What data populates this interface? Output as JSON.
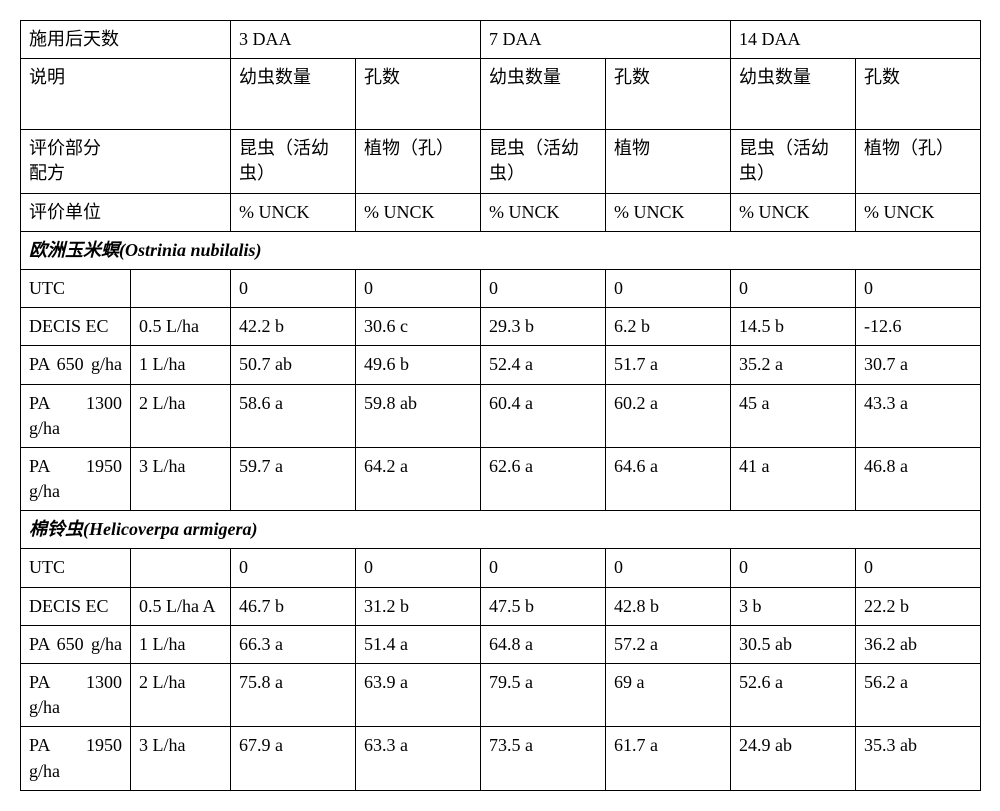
{
  "header": {
    "days_after_app": "施用后天数",
    "daa3": "3 DAA",
    "daa7": "7 DAA",
    "daa14": "14 DAA",
    "desc": "说明",
    "larva_count": "幼虫数量",
    "hole_count": "孔数",
    "eval_part": "评价部分",
    "formulation": "配方",
    "insect_live3": "昆虫（活幼虫）",
    "plant_hole3": "植物（孔）",
    "insect_live7": "昆虫（活幼虫）",
    "plant7": "植物",
    "insect_live14": "昆虫（活幼虫）",
    "plant_hole14": "植物（孔）",
    "eval_unit": "评价单位",
    "pct_unck": "% UNCK"
  },
  "species1": {
    "title_cn": "欧洲玉米螟",
    "title_latin": "(Ostrinia nubilalis)",
    "rows": [
      {
        "name": "UTC",
        "rate": "",
        "v": [
          "0",
          "0",
          "0",
          "0",
          "0",
          "0"
        ]
      },
      {
        "name": "DECIS EC",
        "rate": "0.5 L/ha",
        "v": [
          "42.2 b",
          "30.6 c",
          "29.3 b",
          "6.2 b",
          "14.5 b",
          "-12.6"
        ]
      },
      {
        "name": "PA 650 g/ha",
        "rate": "1 L/ha",
        "v": [
          "50.7 ab",
          "49.6 b",
          "52.4 a",
          "51.7 a",
          "35.2 a",
          "30.7 a"
        ]
      },
      {
        "name": "PA 1300 g/ha",
        "rate": "2 L/ha",
        "v": [
          "58.6 a",
          "59.8 ab",
          "60.4 a",
          "60.2 a",
          "45 a",
          "43.3 a"
        ]
      },
      {
        "name": "PA 1950 g/ha",
        "rate": "3 L/ha",
        "v": [
          "59.7 a",
          "64.2 a",
          "62.6 a",
          "64.6 a",
          "41 a",
          "46.8 a"
        ]
      }
    ]
  },
  "species2": {
    "title_cn": "棉铃虫",
    "title_latin": "(Helicoverpa armigera)",
    "rows": [
      {
        "name": "UTC",
        "rate": "",
        "v": [
          "0",
          "0",
          "0",
          "0",
          "0",
          "0"
        ]
      },
      {
        "name": "DECIS EC",
        "rate": "0.5 L/ha A",
        "v": [
          "46.7 b",
          "31.2 b",
          "47.5 b",
          "42.8 b",
          "3 b",
          "22.2 b"
        ]
      },
      {
        "name": "PA 650 g/ha",
        "rate": "1 L/ha",
        "v": [
          "66.3 a",
          "51.4 a",
          "64.8 a",
          "57.2 a",
          "30.5 ab",
          "36.2 ab"
        ]
      },
      {
        "name": "PA 1300 g/ha",
        "rate": "2 L/ha",
        "v": [
          "75.8 a",
          "63.9 a",
          "79.5 a",
          "69 a",
          "52.6 a",
          "56.2 a"
        ]
      },
      {
        "name": "PA 1950 g/ha",
        "rate": "3 L/ha",
        "v": [
          "67.9 a",
          "63.3 a",
          "73.5 a",
          "61.7 a",
          "24.9 ab",
          "35.3 ab"
        ]
      }
    ]
  }
}
